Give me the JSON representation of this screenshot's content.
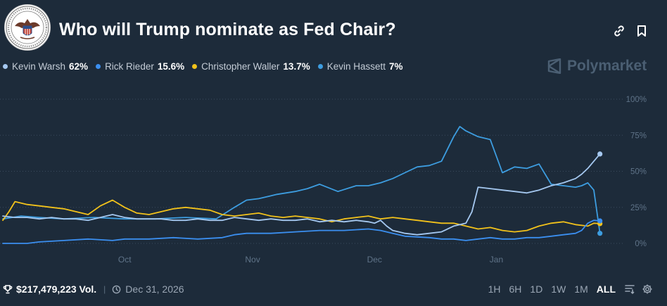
{
  "market": {
    "title": "Who will Trump nominate as Fed Chair?",
    "icons": {
      "seal": "federal-reserve-seal",
      "link": "link-icon",
      "bookmark": "bookmark-icon"
    }
  },
  "brand": {
    "name": "Polymarket",
    "icon": "polymarket-logo-icon"
  },
  "legend": [
    {
      "name": "Kevin Warsh",
      "value": "62%",
      "color": "#a5c8f0"
    },
    {
      "name": "Rick Rieder",
      "value": "15.6%",
      "color": "#3b8ff0"
    },
    {
      "name": "Christopher Waller",
      "value": "13.7%",
      "color": "#f2c21b"
    },
    {
      "name": "Kevin Hassett",
      "value": "7%",
      "color": "#3d9de0"
    }
  ],
  "footer": {
    "volume": "$217,479,223 Vol.",
    "separator": "|",
    "end_date": "Dec 31, 2026",
    "ranges": [
      "1H",
      "6H",
      "1D",
      "1W",
      "1M",
      "ALL"
    ],
    "active_range": "ALL",
    "icons": {
      "volume": "trophy-icon",
      "date": "clock-icon",
      "filter": "filter-lines-icon",
      "settings": "gear-icon"
    }
  },
  "chart_data": {
    "type": "line",
    "title": "",
    "xlabel": "",
    "ylabel": "",
    "ylim": [
      0,
      100
    ],
    "grid": "dotted horizontal",
    "x_range": [
      0,
      100
    ],
    "x_ticks": [
      {
        "label": "Oct",
        "x": 20
      },
      {
        "label": "Nov",
        "x": 41
      },
      {
        "label": "Dec",
        "x": 61
      },
      {
        "label": "Jan",
        "x": 81
      }
    ],
    "y_ticks": [
      {
        "label": "100%",
        "y": 100
      },
      {
        "label": "75%",
        "y": 75
      },
      {
        "label": "50%",
        "y": 50
      },
      {
        "label": "25%",
        "y": 25
      },
      {
        "label": "0%",
        "y": 0
      }
    ],
    "series": [
      {
        "name": "Kevin Hassett",
        "color": "#3d9de0",
        "x": [
          0,
          3,
          6,
          10,
          15,
          20,
          25,
          30,
          35,
          38,
          40,
          42,
          45,
          48,
          50,
          52,
          55,
          58,
          60,
          62,
          64,
          66,
          68,
          70,
          72,
          74,
          75,
          76,
          78,
          80,
          82,
          84,
          86,
          88,
          90,
          92,
          94,
          95,
          96,
          97,
          98
        ],
        "values": [
          17,
          19,
          18,
          17,
          18,
          17,
          17,
          18,
          17,
          25,
          30,
          31,
          34,
          36,
          38,
          41,
          36,
          40,
          40,
          42,
          45,
          49,
          53,
          54,
          57,
          74,
          81,
          78,
          74,
          72,
          49,
          53,
          52,
          55,
          41,
          40,
          39,
          40,
          42,
          37,
          7
        ]
      },
      {
        "name": "Christopher Waller",
        "color": "#f2c21b",
        "x": [
          0,
          1,
          2,
          4,
          6,
          8,
          10,
          14,
          16,
          18,
          20,
          22,
          24,
          26,
          28,
          30,
          34,
          36,
          38,
          40,
          42,
          44,
          46,
          48,
          50,
          52,
          54,
          56,
          58,
          60,
          62,
          64,
          66,
          68,
          70,
          72,
          74,
          75,
          76,
          78,
          80,
          82,
          84,
          86,
          88,
          90,
          92,
          94,
          96,
          97,
          98
        ],
        "values": [
          16,
          22,
          29,
          27,
          26,
          25,
          24,
          20,
          26,
          30,
          25,
          21,
          20,
          22,
          24,
          25,
          23,
          20,
          19,
          20,
          21,
          19,
          18,
          19,
          18,
          17,
          15,
          17,
          18,
          19,
          17,
          18,
          17,
          16,
          15,
          14,
          14,
          13,
          12,
          10,
          11,
          9,
          8,
          9,
          12,
          14,
          15,
          13,
          12,
          14,
          13.7
        ]
      },
      {
        "name": "Kevin Warsh",
        "color": "#a5c8f0",
        "x": [
          0,
          2,
          4,
          6,
          8,
          10,
          12,
          14,
          16,
          18,
          20,
          22,
          24,
          26,
          28,
          30,
          32,
          34,
          36,
          38,
          40,
          42,
          44,
          46,
          48,
          50,
          52,
          54,
          56,
          58,
          60,
          61,
          62,
          63,
          64,
          65,
          66,
          68,
          70,
          72,
          74,
          76,
          77,
          78,
          80,
          82,
          84,
          86,
          88,
          90,
          92,
          94,
          95,
          96,
          97,
          98
        ],
        "values": [
          19,
          18,
          18,
          17,
          18,
          17,
          17,
          16,
          18,
          20,
          18,
          17,
          17,
          17,
          16,
          16,
          17,
          16,
          16,
          18,
          17,
          16,
          17,
          16,
          16,
          17,
          15,
          16,
          15,
          16,
          15,
          14,
          16,
          12,
          9,
          8,
          7,
          6,
          7,
          8,
          12,
          14,
          22,
          39,
          38,
          37,
          36,
          35,
          37,
          40,
          42,
          45,
          48,
          52,
          57,
          62
        ]
      },
      {
        "name": "Rick Rieder",
        "color": "#3b8ff0",
        "x": [
          0,
          4,
          6,
          10,
          14,
          18,
          20,
          24,
          28,
          32,
          36,
          38,
          40,
          44,
          48,
          52,
          56,
          60,
          62,
          64,
          66,
          70,
          72,
          74,
          76,
          78,
          80,
          82,
          84,
          86,
          88,
          90,
          92,
          94,
          95,
          96,
          97,
          98
        ],
        "values": [
          0,
          0,
          1,
          2,
          3,
          2,
          3,
          3,
          4,
          3,
          4,
          6,
          7,
          7,
          8,
          9,
          9,
          10,
          9,
          7,
          5,
          4,
          3,
          3,
          2,
          3,
          4,
          3,
          3,
          4,
          4,
          5,
          6,
          7,
          9,
          14,
          16,
          15.6
        ]
      }
    ]
  }
}
